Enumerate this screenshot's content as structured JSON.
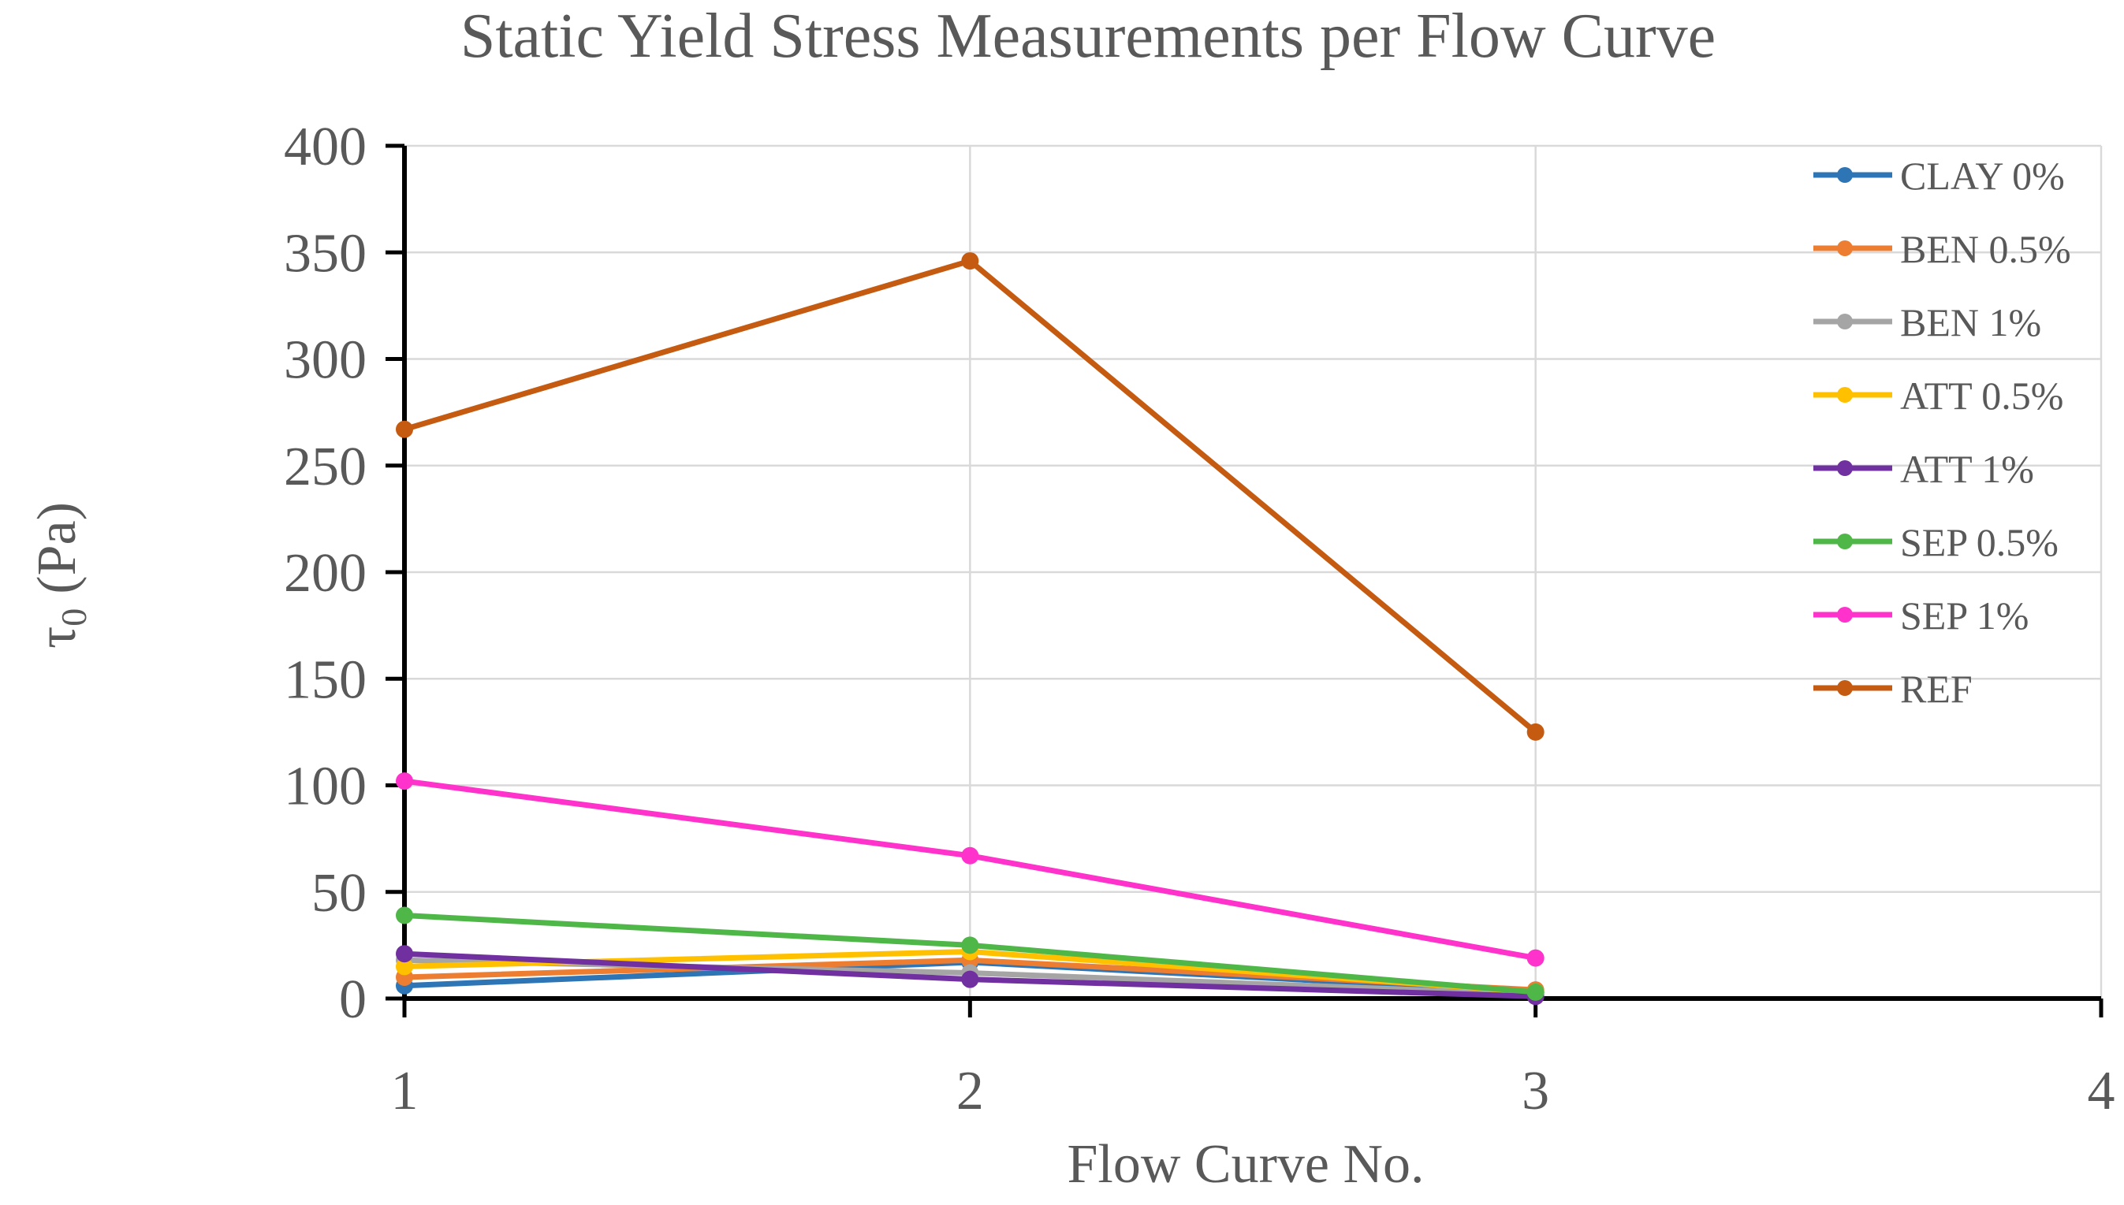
{
  "chart_data": {
    "type": "line",
    "title": "Static Yield Stress Measurements per Flow Curve",
    "xlabel": "Flow Curve No.",
    "ylabel": "τ",
    "ylabel_subscript": "0",
    "ylabel_unit": "(Pa)",
    "xlim": [
      1,
      4
    ],
    "ylim": [
      0,
      400
    ],
    "xticks": [
      1,
      2,
      3,
      4
    ],
    "yticks": [
      0,
      50,
      100,
      150,
      200,
      250,
      300,
      350,
      400
    ],
    "grid": true,
    "legend_position": "right",
    "x": [
      1,
      2,
      3
    ],
    "series": [
      {
        "name": "CLAY 0%",
        "color": "#2e75b6",
        "values": [
          6,
          17,
          3
        ]
      },
      {
        "name": "BEN 0.5%",
        "color": "#ed7d31",
        "values": [
          10,
          18,
          4
        ]
      },
      {
        "name": "BEN 1%",
        "color": "#a5a5a5",
        "values": [
          18,
          12,
          2
        ]
      },
      {
        "name": "ATT 0.5%",
        "color": "#ffc000",
        "values": [
          15,
          22,
          3
        ]
      },
      {
        "name": "ATT 1%",
        "color": "#7030a0",
        "values": [
          21,
          9,
          1
        ]
      },
      {
        "name": "SEP 0.5%",
        "color": "#4eb748",
        "values": [
          39,
          25,
          3
        ]
      },
      {
        "name": "SEP 1%",
        "color": "#ff33cc",
        "values": [
          102,
          67,
          19
        ]
      },
      {
        "name": "REF",
        "color": "#c55a11",
        "values": [
          267,
          346,
          125
        ]
      }
    ]
  }
}
